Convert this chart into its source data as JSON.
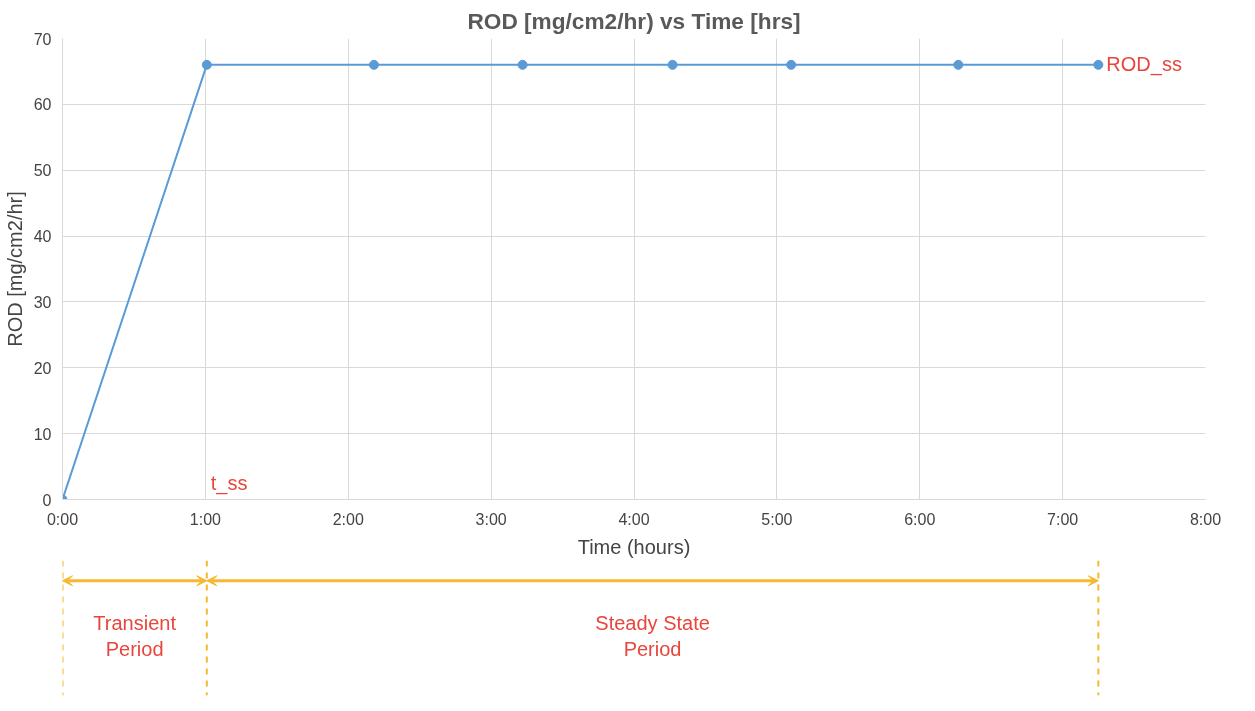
{
  "chart_data": {
    "type": "line",
    "title": "ROD [mg/cm2/hr) vs Time [hrs]",
    "xlabel": "Time (hours)",
    "ylabel": "ROD [mg/cm2/hr]",
    "x": [
      0,
      1.01,
      2.18,
      3.22,
      4.27,
      5.1,
      6.27,
      7.25
    ],
    "series": [
      {
        "color": "#5b9bd5",
        "values": [
          0,
          66,
          66,
          66,
          66,
          66,
          66,
          66
        ]
      }
    ],
    "xlim": [
      0,
      8
    ],
    "xticks": [
      {
        "value": 0,
        "label": "0:00"
      },
      {
        "value": 1,
        "label": "1:00"
      },
      {
        "value": 2,
        "label": "2:00"
      },
      {
        "value": 3,
        "label": "3:00"
      },
      {
        "value": 4,
        "label": "4:00"
      },
      {
        "value": 5,
        "label": "5:00"
      },
      {
        "value": 6,
        "label": "6:00"
      },
      {
        "value": 7,
        "label": "7:00"
      },
      {
        "value": 8,
        "label": "8:00"
      }
    ],
    "ylim": [
      0,
      70
    ],
    "yticks": [
      0,
      10,
      20,
      30,
      40,
      50,
      60,
      70
    ],
    "grid": true,
    "marker": "circle",
    "line_style": "solid",
    "annotations": [
      {
        "text": "ROD_ss",
        "x": 7.25,
        "y": 66
      },
      "t_ss",
      "Transient\nPeriod",
      "Steady State\nPeriod"
    ]
  }
}
